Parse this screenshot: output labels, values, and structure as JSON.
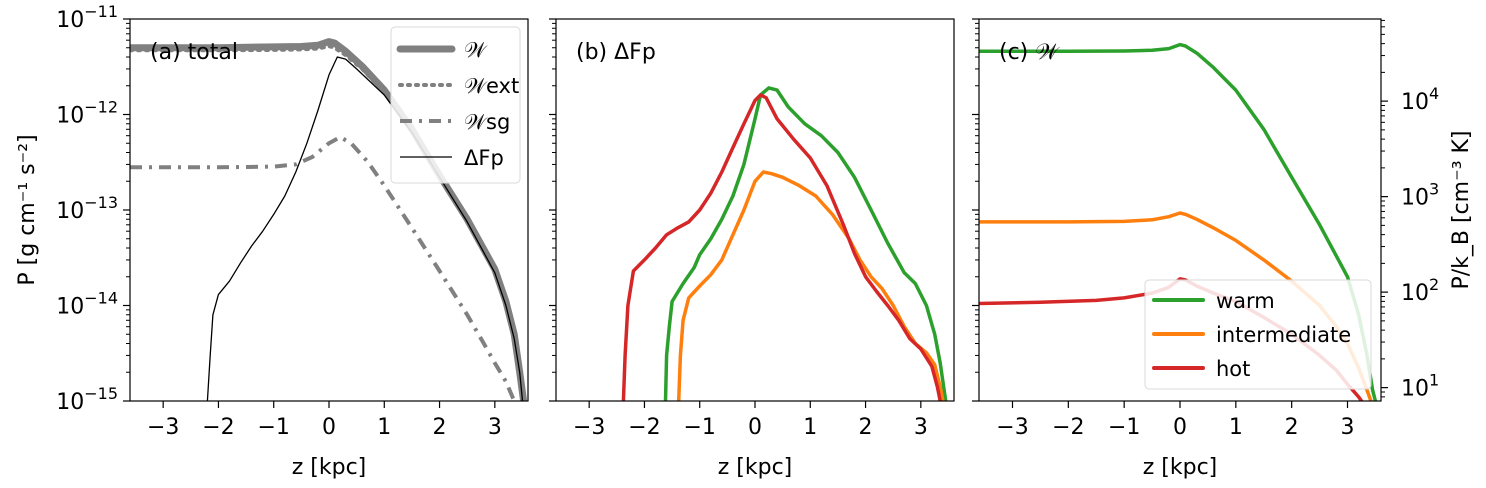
{
  "chart_data": [
    {
      "type": "line",
      "panel_label": "(a) total",
      "xlabel": "z [kpc]",
      "ylabel": "P [g cm⁻¹ s⁻²]",
      "y_scale": "log",
      "xlim": [
        -3.6,
        3.6
      ],
      "ylim": [
        1e-15,
        1e-11
      ],
      "x_ticks": [
        -3,
        -2,
        -1,
        0,
        1,
        2,
        3
      ],
      "x_tick_labels": [
        "−3",
        "−2",
        "−1",
        "0",
        "1",
        "2",
        "3"
      ],
      "y_ticks": [
        1e-15,
        1e-14,
        1e-13,
        1e-12,
        1e-11
      ],
      "y_tick_labels": [
        {
          "base": "10",
          "exp": "−15"
        },
        {
          "base": "10",
          "exp": "−14"
        },
        {
          "base": "10",
          "exp": "−13"
        },
        {
          "base": "10",
          "exp": "−12"
        },
        {
          "base": "10",
          "exp": "−11"
        }
      ],
      "legend_position": "upper right",
      "series": [
        {
          "name": "𝒲",
          "color": "#808080",
          "style": "solid-thick",
          "points": [
            [
              -3.6,
              5e-12
            ],
            [
              -2,
              5e-12
            ],
            [
              -1,
              5.1e-12
            ],
            [
              -0.5,
              5.15e-12
            ],
            [
              -0.2,
              5.3e-12
            ],
            [
              0,
              5.8e-12
            ],
            [
              0.1,
              5.6e-12
            ],
            [
              0.3,
              4.6e-12
            ],
            [
              0.6,
              3.2e-12
            ],
            [
              1,
              1.8e-12
            ],
            [
              1.5,
              7e-13
            ],
            [
              2,
              2.3e-13
            ],
            [
              2.5,
              8e-14
            ],
            [
              3,
              2.4e-14
            ],
            [
              3.2,
              1.1e-14
            ],
            [
              3.35,
              5e-15
            ],
            [
              3.45,
              2e-15
            ],
            [
              3.52,
              1e-15
            ]
          ]
        },
        {
          "name": "𝒲ext",
          "color": "#808080",
          "style": "dotted",
          "points": [
            [
              -3.6,
              4.7e-12
            ],
            [
              -2,
              4.7e-12
            ],
            [
              -1,
              4.75e-12
            ],
            [
              -0.5,
              4.8e-12
            ],
            [
              -0.2,
              4.9e-12
            ],
            [
              0,
              5.2e-12
            ],
            [
              0.1,
              5e-12
            ],
            [
              0.3,
              4.2e-12
            ],
            [
              0.6,
              3e-12
            ],
            [
              1,
              1.7e-12
            ],
            [
              1.5,
              6.6e-13
            ],
            [
              2,
              2.2e-13
            ],
            [
              2.5,
              7.6e-14
            ],
            [
              3,
              2.3e-14
            ],
            [
              3.2,
              1.05e-14
            ],
            [
              3.35,
              4.8e-15
            ],
            [
              3.45,
              1.9e-15
            ],
            [
              3.52,
              1e-15
            ]
          ]
        },
        {
          "name": "𝒲sg",
          "color": "#808080",
          "style": "dashdot",
          "points": [
            [
              -3.6,
              2.8e-13
            ],
            [
              -2,
              2.8e-13
            ],
            [
              -1,
              2.85e-13
            ],
            [
              -0.6,
              3e-13
            ],
            [
              -0.3,
              3.6e-13
            ],
            [
              0,
              5e-13
            ],
            [
              0.2,
              5.8e-13
            ],
            [
              0.4,
              5e-13
            ],
            [
              0.7,
              3.2e-13
            ],
            [
              1,
              1.8e-13
            ],
            [
              1.5,
              6.5e-14
            ],
            [
              2,
              2.3e-14
            ],
            [
              2.5,
              8e-15
            ],
            [
              2.8,
              4e-15
            ],
            [
              3,
              2.5e-15
            ],
            [
              3.2,
              1.6e-15
            ],
            [
              3.35,
              1e-15
            ]
          ]
        },
        {
          "name": "ΔFp",
          "color": "#000000",
          "style": "solid-thin",
          "points": [
            [
              -2.2,
              1e-15
            ],
            [
              -2.15,
              3e-15
            ],
            [
              -2.1,
              8e-15
            ],
            [
              -2,
              1.3e-14
            ],
            [
              -1.8,
              1.8e-14
            ],
            [
              -1.6,
              2.8e-14
            ],
            [
              -1.4,
              4.2e-14
            ],
            [
              -1.2,
              6e-14
            ],
            [
              -1,
              9e-14
            ],
            [
              -0.8,
              1.4e-13
            ],
            [
              -0.6,
              2.5e-13
            ],
            [
              -0.4,
              5e-13
            ],
            [
              -0.2,
              1.1e-12
            ],
            [
              0,
              2.6e-12
            ],
            [
              0.15,
              4e-12
            ],
            [
              0.3,
              3.8e-12
            ],
            [
              0.5,
              3e-12
            ],
            [
              1,
              1.6e-12
            ],
            [
              1.5,
              6.5e-13
            ],
            [
              2,
              2.2e-13
            ],
            [
              2.5,
              7.5e-14
            ],
            [
              3,
              2.2e-14
            ],
            [
              3.2,
              1e-14
            ],
            [
              3.35,
              4.5e-15
            ],
            [
              3.45,
              2e-15
            ],
            [
              3.5,
              1e-15
            ]
          ]
        }
      ]
    },
    {
      "type": "line",
      "panel_label": "(b) ΔFp",
      "xlabel": "z [kpc]",
      "y_scale": "log",
      "xlim": [
        -3.6,
        3.6
      ],
      "ylim": [
        1e-15,
        1e-11
      ],
      "x_ticks": [
        -3,
        -2,
        -1,
        0,
        1,
        2,
        3
      ],
      "x_tick_labels": [
        "−3",
        "−2",
        "−1",
        "0",
        "1",
        "2",
        "3"
      ],
      "series": [
        {
          "name": "warm",
          "color": "#2ca02c",
          "points": [
            [
              -1.62,
              1e-15
            ],
            [
              -1.6,
              3e-15
            ],
            [
              -1.55,
              6e-15
            ],
            [
              -1.5,
              1.1e-14
            ],
            [
              -1.3,
              1.7e-14
            ],
            [
              -1.1,
              2.5e-14
            ],
            [
              -1,
              3.4e-14
            ],
            [
              -0.8,
              5e-14
            ],
            [
              -0.6,
              8e-14
            ],
            [
              -0.4,
              1.4e-13
            ],
            [
              -0.2,
              3e-13
            ],
            [
              0,
              9e-13
            ],
            [
              0.1,
              1.6e-12
            ],
            [
              0.25,
              1.9e-12
            ],
            [
              0.4,
              1.8e-12
            ],
            [
              0.6,
              1.2e-12
            ],
            [
              0.9,
              8e-13
            ],
            [
              1.2,
              6e-13
            ],
            [
              1.5,
              4e-13
            ],
            [
              1.8,
              2.2e-13
            ],
            [
              2.1,
              1e-13
            ],
            [
              2.4,
              4.5e-14
            ],
            [
              2.7,
              2.2e-14
            ],
            [
              2.9,
              1.7e-14
            ],
            [
              3.1,
              1e-14
            ],
            [
              3.25,
              5e-15
            ],
            [
              3.35,
              2.5e-15
            ],
            [
              3.45,
              1e-15
            ]
          ]
        },
        {
          "name": "intermediate",
          "color": "#ff7f0e",
          "points": [
            [
              -1.38,
              1e-15
            ],
            [
              -1.35,
              3e-15
            ],
            [
              -1.3,
              7e-15
            ],
            [
              -1.2,
              1.2e-14
            ],
            [
              -1,
              1.6e-14
            ],
            [
              -0.8,
              2.1e-14
            ],
            [
              -0.6,
              3e-14
            ],
            [
              -0.4,
              5.5e-14
            ],
            [
              -0.2,
              1e-13
            ],
            [
              0,
              2e-13
            ],
            [
              0.15,
              2.5e-13
            ],
            [
              0.3,
              2.4e-13
            ],
            [
              0.5,
              2.2e-13
            ],
            [
              0.8,
              1.8e-13
            ],
            [
              1.1,
              1.4e-13
            ],
            [
              1.4,
              9e-14
            ],
            [
              1.7,
              5e-14
            ],
            [
              1.9,
              3e-14
            ],
            [
              2.1,
              2e-14
            ],
            [
              2.3,
              1.5e-14
            ],
            [
              2.5,
              1e-14
            ],
            [
              2.7,
              6e-15
            ],
            [
              2.9,
              4e-15
            ],
            [
              3.1,
              3.2e-15
            ],
            [
              3.25,
              2.4e-15
            ],
            [
              3.35,
              1.4e-15
            ],
            [
              3.4,
              1e-15
            ]
          ]
        },
        {
          "name": "hot",
          "color": "#d62728",
          "points": [
            [
              -2.38,
              1e-15
            ],
            [
              -2.35,
              3e-15
            ],
            [
              -2.3,
              1e-14
            ],
            [
              -2.2,
              2.3e-14
            ],
            [
              -2,
              3e-14
            ],
            [
              -1.8,
              4e-14
            ],
            [
              -1.6,
              5.5e-14
            ],
            [
              -1.4,
              6.5e-14
            ],
            [
              -1.2,
              7.5e-14
            ],
            [
              -1,
              1e-13
            ],
            [
              -0.8,
              1.5e-13
            ],
            [
              -0.6,
              2.5e-13
            ],
            [
              -0.4,
              4.5e-13
            ],
            [
              -0.2,
              8e-13
            ],
            [
              0,
              1.4e-12
            ],
            [
              0.1,
              1.6e-12
            ],
            [
              0.2,
              1.5e-12
            ],
            [
              0.4,
              9e-13
            ],
            [
              0.7,
              5.5e-13
            ],
            [
              1,
              3.5e-13
            ],
            [
              1.3,
              1.8e-13
            ],
            [
              1.6,
              7e-14
            ],
            [
              1.8,
              3.5e-14
            ],
            [
              2,
              2e-14
            ],
            [
              2.2,
              1.4e-14
            ],
            [
              2.4,
              1e-14
            ],
            [
              2.6,
              7e-15
            ],
            [
              2.8,
              4.5e-15
            ],
            [
              3,
              3.5e-15
            ],
            [
              3.2,
              2.3e-15
            ],
            [
              3.3,
              1.4e-15
            ],
            [
              3.35,
              1e-15
            ]
          ]
        }
      ]
    },
    {
      "type": "line",
      "panel_label": "(c) 𝒲",
      "xlabel": "z [kpc]",
      "y2label": "P/k_B [cm⁻³ K]",
      "y_scale": "log",
      "xlim": [
        -3.6,
        3.6
      ],
      "ylim": [
        1e-15,
        1e-11
      ],
      "x_ticks": [
        -3,
        -2,
        -1,
        0,
        1,
        2,
        3
      ],
      "x_tick_labels": [
        "−3",
        "−2",
        "−1",
        "0",
        "1",
        "2",
        "3"
      ],
      "y2_ticks": [
        10,
        100,
        1000,
        10000
      ],
      "y2_tick_labels": [
        {
          "base": "10",
          "exp": "1"
        },
        {
          "base": "10",
          "exp": "2"
        },
        {
          "base": "10",
          "exp": "3"
        },
        {
          "base": "10",
          "exp": "4"
        }
      ],
      "legend_position": "lower right",
      "series": [
        {
          "name": "warm",
          "color": "#2ca02c",
          "points": [
            [
              -3.6,
              4.6e-12
            ],
            [
              -2,
              4.6e-12
            ],
            [
              -1,
              4.62e-12
            ],
            [
              -0.5,
              4.7e-12
            ],
            [
              -0.2,
              4.9e-12
            ],
            [
              0,
              5.4e-12
            ],
            [
              0.1,
              5.2e-12
            ],
            [
              0.3,
              4.4e-12
            ],
            [
              0.6,
              3.1e-12
            ],
            [
              1,
              1.8e-12
            ],
            [
              1.5,
              7e-13
            ],
            [
              2,
              2.2e-13
            ],
            [
              2.5,
              7e-14
            ],
            [
              3,
              2e-14
            ],
            [
              3.2,
              8e-15
            ],
            [
              3.35,
              3e-15
            ],
            [
              3.45,
              1.3e-15
            ],
            [
              3.5,
              1e-15
            ]
          ]
        },
        {
          "name": "intermediate",
          "color": "#ff7f0e",
          "points": [
            [
              -3.6,
              7.5e-14
            ],
            [
              -2,
              7.5e-14
            ],
            [
              -1,
              7.6e-14
            ],
            [
              -0.5,
              7.9e-14
            ],
            [
              -0.2,
              8.5e-14
            ],
            [
              0,
              9.3e-14
            ],
            [
              0.1,
              9e-14
            ],
            [
              0.3,
              8e-14
            ],
            [
              0.6,
              6.5e-14
            ],
            [
              1,
              4.8e-14
            ],
            [
              1.5,
              3e-14
            ],
            [
              2,
              1.8e-14
            ],
            [
              2.5,
              1e-14
            ],
            [
              2.8,
              6e-15
            ],
            [
              3,
              4e-15
            ],
            [
              3.2,
              2.2e-15
            ],
            [
              3.35,
              1.3e-15
            ],
            [
              3.42,
              1e-15
            ]
          ]
        },
        {
          "name": "hot",
          "color": "#d62728",
          "points": [
            [
              -3.6,
              1.05e-14
            ],
            [
              -2.5,
              1.08e-14
            ],
            [
              -1.5,
              1.13e-14
            ],
            [
              -1,
              1.2e-14
            ],
            [
              -0.5,
              1.35e-14
            ],
            [
              -0.2,
              1.55e-14
            ],
            [
              0,
              1.9e-14
            ],
            [
              0.1,
              1.85e-14
            ],
            [
              0.3,
              1.6e-14
            ],
            [
              0.6,
              1.35e-14
            ],
            [
              1,
              1.1e-14
            ],
            [
              1.5,
              7.5e-15
            ],
            [
              2,
              5e-15
            ],
            [
              2.5,
              3e-15
            ],
            [
              2.8,
              2.1e-15
            ],
            [
              3,
              1.5e-15
            ],
            [
              3.2,
              1.1e-15
            ],
            [
              3.25,
              1e-15
            ]
          ]
        }
      ]
    }
  ]
}
